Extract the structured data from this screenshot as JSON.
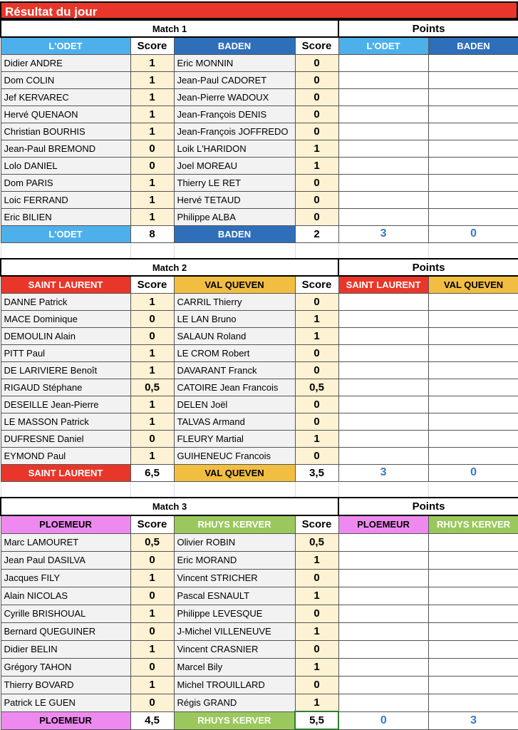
{
  "title": "Résultat du jour",
  "points_label": "Points",
  "score_label": "Score",
  "matches": [
    {
      "label": "Match 1",
      "team1": {
        "name": "L'ODET",
        "color": "#4eb0ea",
        "text": "#ffffff"
      },
      "team2": {
        "name": "BADEN",
        "color": "#2f6fba",
        "text": "#ffffff"
      },
      "rows": [
        [
          "Didier ANDRE",
          "1",
          "Eric MONNIN",
          "0"
        ],
        [
          "Dom COLIN",
          "1",
          "Jean-Paul CADORET",
          "0"
        ],
        [
          "Jef KERVAREC",
          "1",
          "Jean-Pierre WADOUX",
          "0"
        ],
        [
          "Hervé QUENAON",
          "1",
          "Jean-François DENIS",
          "0"
        ],
        [
          "Christian BOURHIS",
          "1",
          "Jean-François JOFFREDO",
          "0"
        ],
        [
          "Jean-Paul BREMOND",
          "0",
          "Loik L'HARIDON",
          "1"
        ],
        [
          "Lolo DANIEL",
          "0",
          "Joel MOREAU",
          "1"
        ],
        [
          "Dom PARIS",
          "1",
          "Thierry LE RET",
          "0"
        ],
        [
          "Loic FERRAND",
          "1",
          "Hervé TETAUD",
          "0"
        ],
        [
          "Eric BILIEN",
          "1",
          "Philippe ALBA",
          "0"
        ]
      ],
      "total1": "8",
      "total2": "2",
      "points1": "3",
      "points2": "0"
    },
    {
      "label": "Match 2",
      "team1": {
        "name": "SAINT LAURENT",
        "color": "#e8372a",
        "text": "#ffffff"
      },
      "team2": {
        "name": "VAL QUEVEN",
        "color": "#f2be42",
        "text": "#000000"
      },
      "rows": [
        [
          "DANNE Patrick",
          "1",
          "CARRIL Thierry",
          "0"
        ],
        [
          "MACE Dominique",
          "0",
          "LE LAN Bruno",
          "1"
        ],
        [
          "DEMOULIN Alain",
          "0",
          "SALAUN Roland",
          "1"
        ],
        [
          "PITT Paul",
          "1",
          "LE CROM Robert",
          "0"
        ],
        [
          "DE LARIVIERE Benoît",
          "1",
          "DAVARANT Franck",
          "0"
        ],
        [
          "RIGAUD Stéphane",
          "0,5",
          "CATOIRE Jean Francois",
          "0,5"
        ],
        [
          "DESEILLE Jean-Pierre",
          "1",
          "DELEN Joël",
          "0"
        ],
        [
          "LE MASSON Patrick",
          "1",
          "TALVAS Armand",
          "0"
        ],
        [
          "DUFRESNE Daniel",
          "0",
          "FLEURY Martial",
          "1"
        ],
        [
          "EYMOND Paul",
          "1",
          "GUIHENEUC Francois",
          "0"
        ]
      ],
      "total1": "6,5",
      "total2": "3,5",
      "points1": "3",
      "points2": "0"
    },
    {
      "label": "Match 3",
      "team1": {
        "name": "PLOEMEUR",
        "color": "#ee8aef",
        "text": "#000000"
      },
      "team2": {
        "name": "RHUYS KERVER",
        "color": "#9bc85d",
        "text": "#ffffff"
      },
      "rows": [
        [
          "Marc LAMOURET",
          "0,5",
          "Olivier ROBIN",
          "0,5"
        ],
        [
          "Jean Paul DASILVA",
          "0",
          "Eric MORAND",
          "1"
        ],
        [
          "Jacques FILY",
          "1",
          "Vincent STRICHER",
          "0"
        ],
        [
          "Alain NICOLAS",
          "0",
          "Pascal ESNAULT",
          "1"
        ],
        [
          "Cyrille BRISHOUAL",
          "1",
          "Philippe LEVESQUE",
          "0"
        ],
        [
          "Bernard QUEGUINER",
          "0",
          "J-Michel VILLENEUVE",
          "1"
        ],
        [
          "Didier BELIN",
          "1",
          "Vincent CRASNIER",
          "0"
        ],
        [
          "Grégory TAHON",
          "0",
          "Marcel Bily",
          "1"
        ],
        [
          "Thierry BOVARD",
          "1",
          "Michel TROUILLARD",
          "0"
        ],
        [
          "Patrick LE GUEN",
          "0",
          "Régis GRAND",
          "1"
        ]
      ],
      "total1": "4,5",
      "total2": "5,5",
      "points1": "0",
      "points2": "3"
    }
  ]
}
